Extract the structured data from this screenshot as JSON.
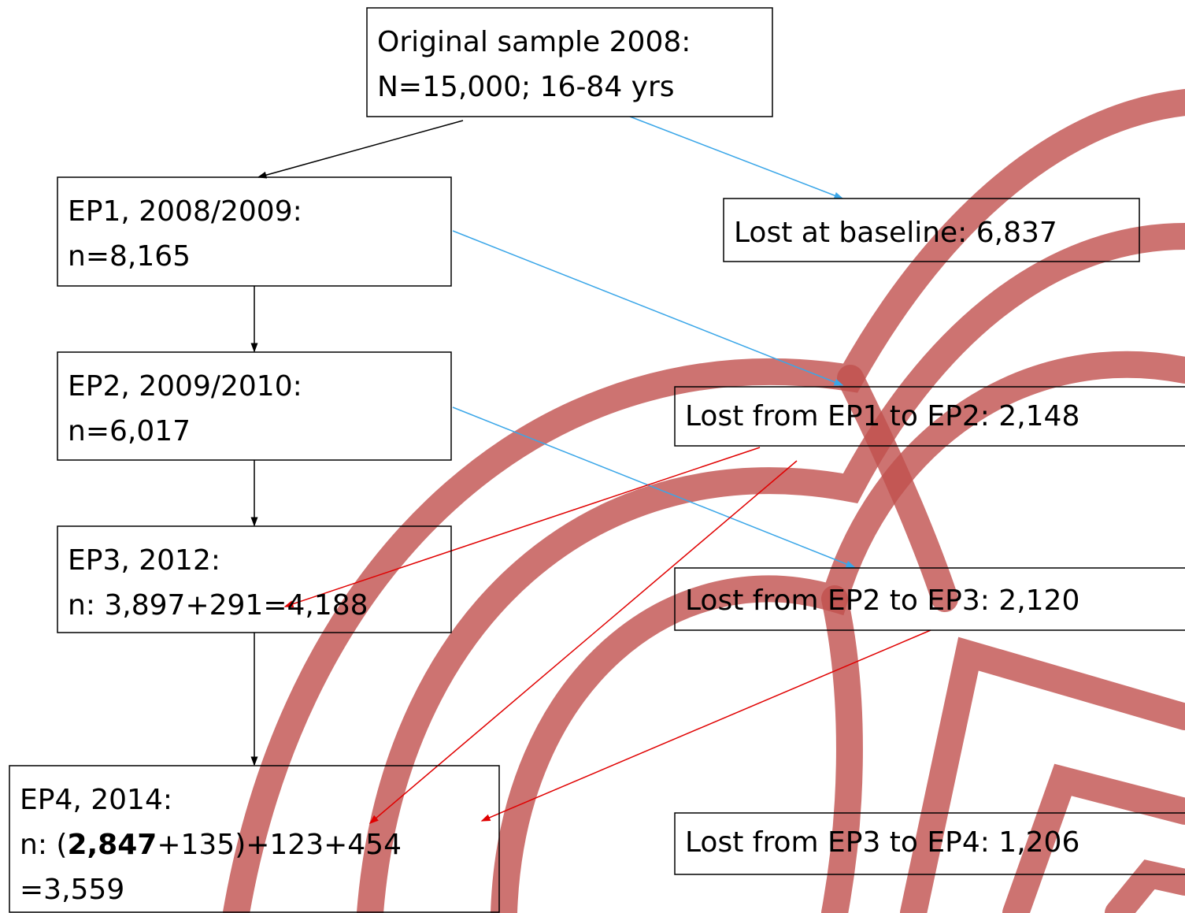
{
  "nodes": [
    {
      "lines": [
        "Original sample 2008:",
        "N=15,000; 16-84 yrs"
      ]
    },
    {
      "lines": [
        "EP1, 2008/2009:",
        "n=8,165"
      ]
    },
    {
      "lines": [
        "EP2, 2009/2010:",
        "n=6,017"
      ]
    },
    {
      "lines": [
        "EP3, 2012:",
        "n: 3,897+291=4,188"
      ]
    },
    {
      "lines": [
        "EP4, 2014:",
        [
          "n: (",
          {
            "text": "2,847",
            "bold": true
          },
          "+135)+123+454"
        ],
        "=3,559"
      ]
    },
    {
      "lines": [
        "Lost at baseline: 6,837"
      ]
    },
    {
      "lines": [
        "Lost from EP1 to EP2: 2,148"
      ]
    },
    {
      "lines": [
        "Lost from EP2 to EP3: 2,120"
      ]
    },
    {
      "lines": [
        "Lost from EP3 to EP4: 1,206"
      ]
    }
  ]
}
